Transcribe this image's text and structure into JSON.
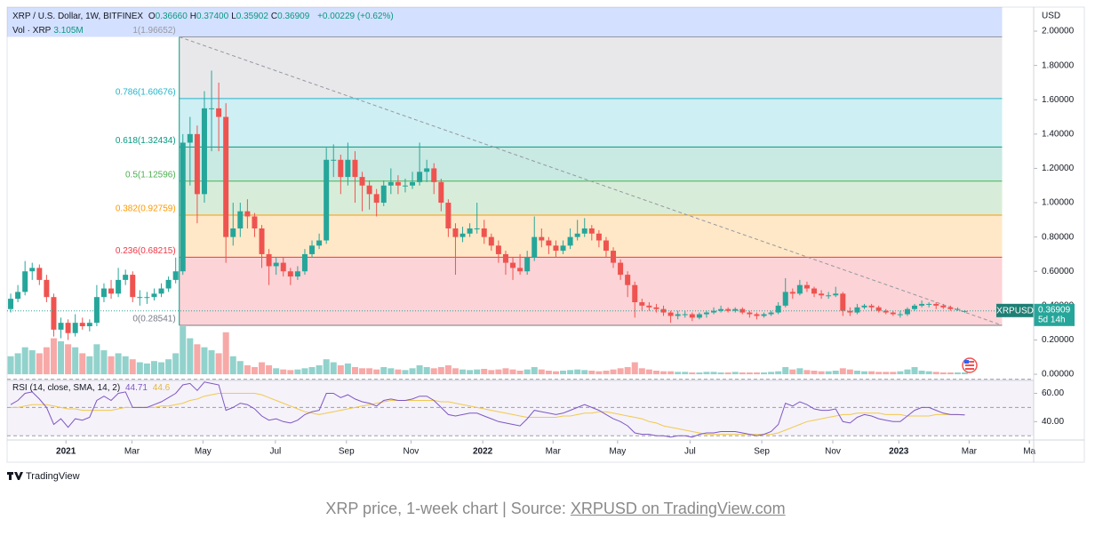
{
  "chart_data": {
    "type": "candlestick",
    "header": {
      "symbol": "XRP / U.S. Dollar, 1W, BITFINEX",
      "ohlc": [
        {
          "key": "O",
          "value": "0.36660"
        },
        {
          "key": "H",
          "value": "0.37400"
        },
        {
          "key": "L",
          "value": "0.35902"
        },
        {
          "key": "C",
          "value": "0.36909"
        }
      ],
      "change": "+0.00229 (+0.62%)",
      "vol_label": "Vol · XRP",
      "vol_value": "3.105M"
    },
    "currency": "USD",
    "up_color": "#26a69a",
    "down_color": "#ef5350",
    "ohlc": [
      [
        0.38,
        0.47,
        0.36,
        0.44
      ],
      [
        0.44,
        0.52,
        0.42,
        0.48
      ],
      [
        0.48,
        0.66,
        0.46,
        0.6
      ],
      [
        0.6,
        0.65,
        0.55,
        0.62
      ],
      [
        0.62,
        0.64,
        0.52,
        0.55
      ],
      [
        0.55,
        0.58,
        0.42,
        0.45
      ],
      [
        0.45,
        0.47,
        0.22,
        0.26
      ],
      [
        0.26,
        0.33,
        0.21,
        0.3
      ],
      [
        0.3,
        0.32,
        0.2,
        0.24
      ],
      [
        0.24,
        0.35,
        0.22,
        0.3
      ],
      [
        0.3,
        0.33,
        0.26,
        0.28
      ],
      [
        0.28,
        0.32,
        0.25,
        0.3
      ],
      [
        0.3,
        0.52,
        0.28,
        0.45
      ],
      [
        0.45,
        0.53,
        0.42,
        0.5
      ],
      [
        0.5,
        0.55,
        0.44,
        0.47
      ],
      [
        0.47,
        0.62,
        0.45,
        0.55
      ],
      [
        0.55,
        0.61,
        0.52,
        0.58
      ],
      [
        0.58,
        0.6,
        0.42,
        0.45
      ],
      [
        0.45,
        0.49,
        0.4,
        0.45
      ],
      [
        0.45,
        0.48,
        0.41,
        0.45
      ],
      [
        0.45,
        0.5,
        0.43,
        0.47
      ],
      [
        0.47,
        0.53,
        0.45,
        0.5
      ],
      [
        0.5,
        0.57,
        0.48,
        0.55
      ],
      [
        0.55,
        0.68,
        0.53,
        0.6
      ],
      [
        0.6,
        1.4,
        0.58,
        1.35
      ],
      [
        1.35,
        1.5,
        1.1,
        1.4
      ],
      [
        1.4,
        1.45,
        0.88,
        1.05
      ],
      [
        1.05,
        1.65,
        1.0,
        1.55
      ],
      [
        1.55,
        1.77,
        1.3,
        1.55
      ],
      [
        1.55,
        1.7,
        1.3,
        1.5
      ],
      [
        1.5,
        1.58,
        0.65,
        0.8
      ],
      [
        0.8,
        1.0,
        0.75,
        0.85
      ],
      [
        0.85,
        1.0,
        0.8,
        0.95
      ],
      [
        0.95,
        1.02,
        0.85,
        0.92
      ],
      [
        0.92,
        0.94,
        0.8,
        0.85
      ],
      [
        0.85,
        0.87,
        0.62,
        0.7
      ],
      [
        0.7,
        0.73,
        0.52,
        0.63
      ],
      [
        0.63,
        0.68,
        0.58,
        0.65
      ],
      [
        0.65,
        0.68,
        0.57,
        0.6
      ],
      [
        0.6,
        0.62,
        0.52,
        0.57
      ],
      [
        0.57,
        0.63,
        0.55,
        0.6
      ],
      [
        0.6,
        0.73,
        0.58,
        0.7
      ],
      [
        0.7,
        0.78,
        0.68,
        0.75
      ],
      [
        0.75,
        0.82,
        0.73,
        0.78
      ],
      [
        0.78,
        1.32,
        0.76,
        1.25
      ],
      [
        1.25,
        1.34,
        1.15,
        1.25
      ],
      [
        1.25,
        1.28,
        1.05,
        1.15
      ],
      [
        1.15,
        1.35,
        1.1,
        1.25
      ],
      [
        1.25,
        1.3,
        1.0,
        1.15
      ],
      [
        1.15,
        1.18,
        0.95,
        1.1
      ],
      [
        1.1,
        1.13,
        0.96,
        1.05
      ],
      [
        1.05,
        1.08,
        0.92,
        1.0
      ],
      [
        1.0,
        1.13,
        0.98,
        1.1
      ],
      [
        1.1,
        1.2,
        1.05,
        1.12
      ],
      [
        1.12,
        1.16,
        1.05,
        1.1
      ],
      [
        1.1,
        1.14,
        1.06,
        1.1
      ],
      [
        1.1,
        1.18,
        1.08,
        1.12
      ],
      [
        1.12,
        1.35,
        1.1,
        1.18
      ],
      [
        1.18,
        1.25,
        1.12,
        1.2
      ],
      [
        1.2,
        1.23,
        1.05,
        1.12
      ],
      [
        1.12,
        1.14,
        0.95,
        1.0
      ],
      [
        1.0,
        1.02,
        0.8,
        0.85
      ],
      [
        0.85,
        0.88,
        0.58,
        0.8
      ],
      [
        0.8,
        0.86,
        0.77,
        0.82
      ],
      [
        0.82,
        0.88,
        0.8,
        0.85
      ],
      [
        0.85,
        1.0,
        0.82,
        0.85
      ],
      [
        0.85,
        0.9,
        0.76,
        0.8
      ],
      [
        0.8,
        0.82,
        0.72,
        0.75
      ],
      [
        0.75,
        0.78,
        0.65,
        0.7
      ],
      [
        0.7,
        0.72,
        0.58,
        0.65
      ],
      [
        0.65,
        0.68,
        0.55,
        0.62
      ],
      [
        0.62,
        0.7,
        0.58,
        0.6
      ],
      [
        0.6,
        0.72,
        0.58,
        0.68
      ],
      [
        0.68,
        0.92,
        0.66,
        0.8
      ],
      [
        0.8,
        0.85,
        0.74,
        0.78
      ],
      [
        0.78,
        0.8,
        0.7,
        0.75
      ],
      [
        0.75,
        0.78,
        0.68,
        0.72
      ],
      [
        0.72,
        0.78,
        0.7,
        0.75
      ],
      [
        0.75,
        0.85,
        0.73,
        0.8
      ],
      [
        0.8,
        0.9,
        0.78,
        0.82
      ],
      [
        0.82,
        0.91,
        0.8,
        0.85
      ],
      [
        0.85,
        0.87,
        0.78,
        0.82
      ],
      [
        0.82,
        0.84,
        0.74,
        0.78
      ],
      [
        0.78,
        0.8,
        0.68,
        0.72
      ],
      [
        0.72,
        0.74,
        0.62,
        0.65
      ],
      [
        0.65,
        0.67,
        0.55,
        0.58
      ],
      [
        0.58,
        0.6,
        0.45,
        0.52
      ],
      [
        0.52,
        0.54,
        0.33,
        0.42
      ],
      [
        0.42,
        0.44,
        0.37,
        0.4
      ],
      [
        0.4,
        0.42,
        0.37,
        0.39
      ],
      [
        0.39,
        0.41,
        0.36,
        0.38
      ],
      [
        0.38,
        0.4,
        0.34,
        0.36
      ],
      [
        0.36,
        0.37,
        0.3,
        0.34
      ],
      [
        0.34,
        0.37,
        0.32,
        0.35
      ],
      [
        0.35,
        0.37,
        0.33,
        0.35
      ],
      [
        0.35,
        0.36,
        0.31,
        0.33
      ],
      [
        0.33,
        0.36,
        0.32,
        0.35
      ],
      [
        0.35,
        0.37,
        0.33,
        0.36
      ],
      [
        0.36,
        0.39,
        0.35,
        0.37
      ],
      [
        0.37,
        0.4,
        0.36,
        0.38
      ],
      [
        0.38,
        0.39,
        0.36,
        0.37
      ],
      [
        0.37,
        0.39,
        0.36,
        0.38
      ],
      [
        0.38,
        0.39,
        0.35,
        0.36
      ],
      [
        0.36,
        0.37,
        0.33,
        0.35
      ],
      [
        0.35,
        0.36,
        0.32,
        0.34
      ],
      [
        0.34,
        0.36,
        0.33,
        0.35
      ],
      [
        0.35,
        0.37,
        0.34,
        0.36
      ],
      [
        0.36,
        0.42,
        0.35,
        0.4
      ],
      [
        0.4,
        0.56,
        0.39,
        0.48
      ],
      [
        0.48,
        0.5,
        0.44,
        0.47
      ],
      [
        0.47,
        0.55,
        0.46,
        0.52
      ],
      [
        0.52,
        0.54,
        0.48,
        0.5
      ],
      [
        0.5,
        0.51,
        0.45,
        0.47
      ],
      [
        0.47,
        0.49,
        0.44,
        0.46
      ],
      [
        0.46,
        0.48,
        0.44,
        0.46
      ],
      [
        0.46,
        0.51,
        0.45,
        0.47
      ],
      [
        0.47,
        0.48,
        0.34,
        0.37
      ],
      [
        0.37,
        0.39,
        0.34,
        0.36
      ],
      [
        0.36,
        0.41,
        0.35,
        0.39
      ],
      [
        0.39,
        0.41,
        0.38,
        0.4
      ],
      [
        0.4,
        0.41,
        0.37,
        0.39
      ],
      [
        0.39,
        0.4,
        0.36,
        0.37
      ],
      [
        0.37,
        0.38,
        0.35,
        0.36
      ],
      [
        0.36,
        0.37,
        0.34,
        0.35
      ],
      [
        0.35,
        0.37,
        0.33,
        0.35
      ],
      [
        0.35,
        0.39,
        0.34,
        0.38
      ],
      [
        0.38,
        0.41,
        0.37,
        0.4
      ],
      [
        0.4,
        0.43,
        0.39,
        0.41
      ],
      [
        0.41,
        0.42,
        0.39,
        0.41
      ],
      [
        0.41,
        0.42,
        0.38,
        0.4
      ],
      [
        0.4,
        0.41,
        0.38,
        0.39
      ],
      [
        0.39,
        0.4,
        0.37,
        0.38
      ],
      [
        0.38,
        0.39,
        0.37,
        0.38
      ],
      [
        0.3666,
        0.374,
        0.35902,
        0.36909
      ]
    ],
    "volume": [
      30,
      35,
      45,
      40,
      35,
      45,
      60,
      55,
      50,
      45,
      35,
      30,
      50,
      40,
      30,
      35,
      30,
      25,
      20,
      18,
      22,
      20,
      25,
      35,
      80,
      60,
      50,
      45,
      40,
      35,
      70,
      30,
      22,
      15,
      12,
      20,
      15,
      10,
      8,
      7,
      8,
      10,
      12,
      15,
      25,
      20,
      15,
      18,
      12,
      10,
      10,
      8,
      12,
      10,
      8,
      7,
      10,
      15,
      12,
      10,
      12,
      15,
      10,
      8,
      7,
      8,
      9,
      7,
      8,
      10,
      8,
      6,
      8,
      12,
      8,
      6,
      5,
      6,
      7,
      8,
      7,
      6,
      5,
      6,
      8,
      10,
      12,
      20,
      10,
      8,
      6,
      5,
      5,
      4,
      4,
      3,
      3,
      4,
      4,
      3,
      3,
      4,
      3,
      3,
      3,
      3,
      4,
      5,
      12,
      8,
      10,
      7,
      6,
      5,
      5,
      6,
      10,
      8,
      6,
      5,
      5,
      4,
      4,
      4,
      5,
      8,
      12,
      6,
      5,
      4,
      3,
      3,
      3,
      3.105
    ],
    "volume_ylim": [
      0,
      120
    ],
    "xlim": [
      -0.5,
      142.6
    ],
    "xticks": [
      {
        "value": 7.7,
        "label": "2021"
      },
      {
        "value": 16.9,
        "label": "Mar"
      },
      {
        "value": 26.8,
        "label": "May"
      },
      {
        "value": 36.9,
        "label": "Jul"
      },
      {
        "value": 46.8,
        "label": "Sep"
      },
      {
        "value": 55.8,
        "label": "Nov"
      },
      {
        "value": 65.8,
        "label": "2022"
      },
      {
        "value": 75.6,
        "label": "Mar"
      },
      {
        "value": 84.6,
        "label": "May"
      },
      {
        "value": 94.7,
        "label": "Jul"
      },
      {
        "value": 104.7,
        "label": "Sep"
      },
      {
        "value": 114.6,
        "label": "Nov"
      },
      {
        "value": 123.8,
        "label": "2023"
      },
      {
        "value": 133.6,
        "label": "Mar"
      },
      {
        "value": 142,
        "label": "Ma"
      }
    ],
    "ylim": [
      -0.036,
      2.14
    ],
    "yticks": [
      {
        "value": 0,
        "label": "0.00000"
      },
      {
        "value": 0.2,
        "label": "0.20000"
      },
      {
        "value": 0.4,
        "label": "0.40000"
      },
      {
        "value": 0.6,
        "label": "0.60000"
      },
      {
        "value": 0.8,
        "label": "0.80000"
      },
      {
        "value": 1.0,
        "label": "1.00000"
      },
      {
        "value": 1.2,
        "label": "1.20000"
      },
      {
        "value": 1.4,
        "label": "1.40000"
      },
      {
        "value": 1.6,
        "label": "1.60000"
      },
      {
        "value": 1.8,
        "label": "1.80000"
      },
      {
        "value": 2.0,
        "label": "2.00000"
      }
    ],
    "fib_start": 23.5,
    "fib_end": 138.2,
    "fib": [
      {
        "ratio": 1,
        "price": 1.96652,
        "label": "1(1.96652)",
        "color": "#9598a1"
      },
      {
        "ratio": 0.786,
        "price": 1.60676,
        "label": "0.786(1.60676)",
        "color": "#22b5c9"
      },
      {
        "ratio": 0.618,
        "price": 1.32434,
        "label": "0.618(1.32434)",
        "color": "#089981"
      },
      {
        "ratio": 0.5,
        "price": 1.12596,
        "label": "0.5(1.12596)",
        "color": "#4caf50"
      },
      {
        "ratio": 0.382,
        "price": 0.92759,
        "label": "0.382(0.92759)",
        "color": "#ff9800"
      },
      {
        "ratio": 0.236,
        "price": 0.68215,
        "label": "0.236(0.68215)",
        "color": "#f23645"
      },
      {
        "ratio": 0,
        "price": 0.28541,
        "label": "0(0.28541)",
        "color": "#787b86"
      }
    ],
    "trendline": {
      "x": [
        23.5,
        138.2
      ],
      "y": [
        1.96652,
        0.28541
      ]
    },
    "price_label": {
      "symbol": "XRPUSD",
      "value": 0.36909,
      "countdown": "5d 14h"
    },
    "rsi": {
      "label": "RSI (14, close, SMA, 14, 2)",
      "color": "#7e57c2",
      "sma_color": "#f2c94c",
      "ylim": [
        27,
        71
      ],
      "yticks": [
        {
          "value": 40,
          "label": "40.00"
        },
        {
          "value": 60,
          "label": "60.00"
        }
      ],
      "bands": [
        70,
        50,
        30
      ],
      "values": [
        52,
        55,
        60,
        61,
        56,
        50,
        38,
        42,
        36,
        42,
        41,
        43,
        55,
        58,
        55,
        60,
        61,
        50,
        50,
        50,
        52,
        54,
        57,
        60,
        66,
        67,
        62,
        68,
        67,
        66,
        48,
        50,
        53,
        52,
        49,
        44,
        41,
        42,
        40,
        39,
        41,
        45,
        47,
        48,
        60,
        60,
        57,
        59,
        56,
        54,
        53,
        51,
        55,
        56,
        55,
        55,
        56,
        58,
        58,
        55,
        50,
        45,
        44,
        45,
        46,
        46,
        44,
        42,
        40,
        39,
        38,
        37,
        42,
        48,
        47,
        46,
        45,
        46,
        48,
        50,
        52,
        50,
        48,
        45,
        42,
        40,
        37,
        32,
        31,
        31,
        30,
        30,
        29,
        30,
        30,
        29,
        31,
        32,
        32,
        33,
        33,
        33,
        32,
        31,
        30,
        31,
        33,
        38,
        53,
        51,
        54,
        52,
        49,
        48,
        48,
        49,
        40,
        39,
        43,
        45,
        44,
        42,
        41,
        40,
        40,
        44,
        48,
        50,
        50,
        48,
        46,
        45,
        45,
        44.71
      ],
      "sma": [
        50,
        50,
        51,
        52,
        52,
        52,
        51,
        50,
        49,
        49,
        48,
        48,
        48,
        48,
        48,
        49,
        50,
        50,
        50,
        50,
        50,
        51,
        51,
        52,
        53,
        55,
        56,
        58,
        59,
        60,
        60,
        60,
        60,
        60,
        60,
        59,
        57,
        55,
        53,
        51,
        49,
        47,
        46,
        45,
        46,
        47,
        48,
        49,
        50,
        51,
        52,
        53,
        54,
        55,
        55,
        55,
        55,
        55,
        55,
        55,
        54,
        54,
        53,
        52,
        51,
        50,
        49,
        48,
        47,
        46,
        45,
        44,
        43,
        43,
        43,
        43,
        43,
        44,
        44,
        45,
        46,
        46,
        47,
        47,
        46,
        45,
        44,
        43,
        42,
        40,
        39,
        37,
        36,
        35,
        34,
        33,
        32,
        31,
        31,
        31,
        31,
        31,
        31,
        31,
        31,
        31,
        31,
        32,
        34,
        36,
        38,
        40,
        41,
        42,
        43,
        44,
        45,
        45,
        46,
        46,
        46,
        46,
        45,
        45,
        45,
        44,
        44,
        44,
        44,
        45,
        45,
        45,
        45,
        44.6
      ]
    },
    "brand": "TradingView"
  },
  "caption": {
    "text": "XRP price, 1-week chart | Source: ",
    "link": "XRPUSD on TradingView.com"
  }
}
